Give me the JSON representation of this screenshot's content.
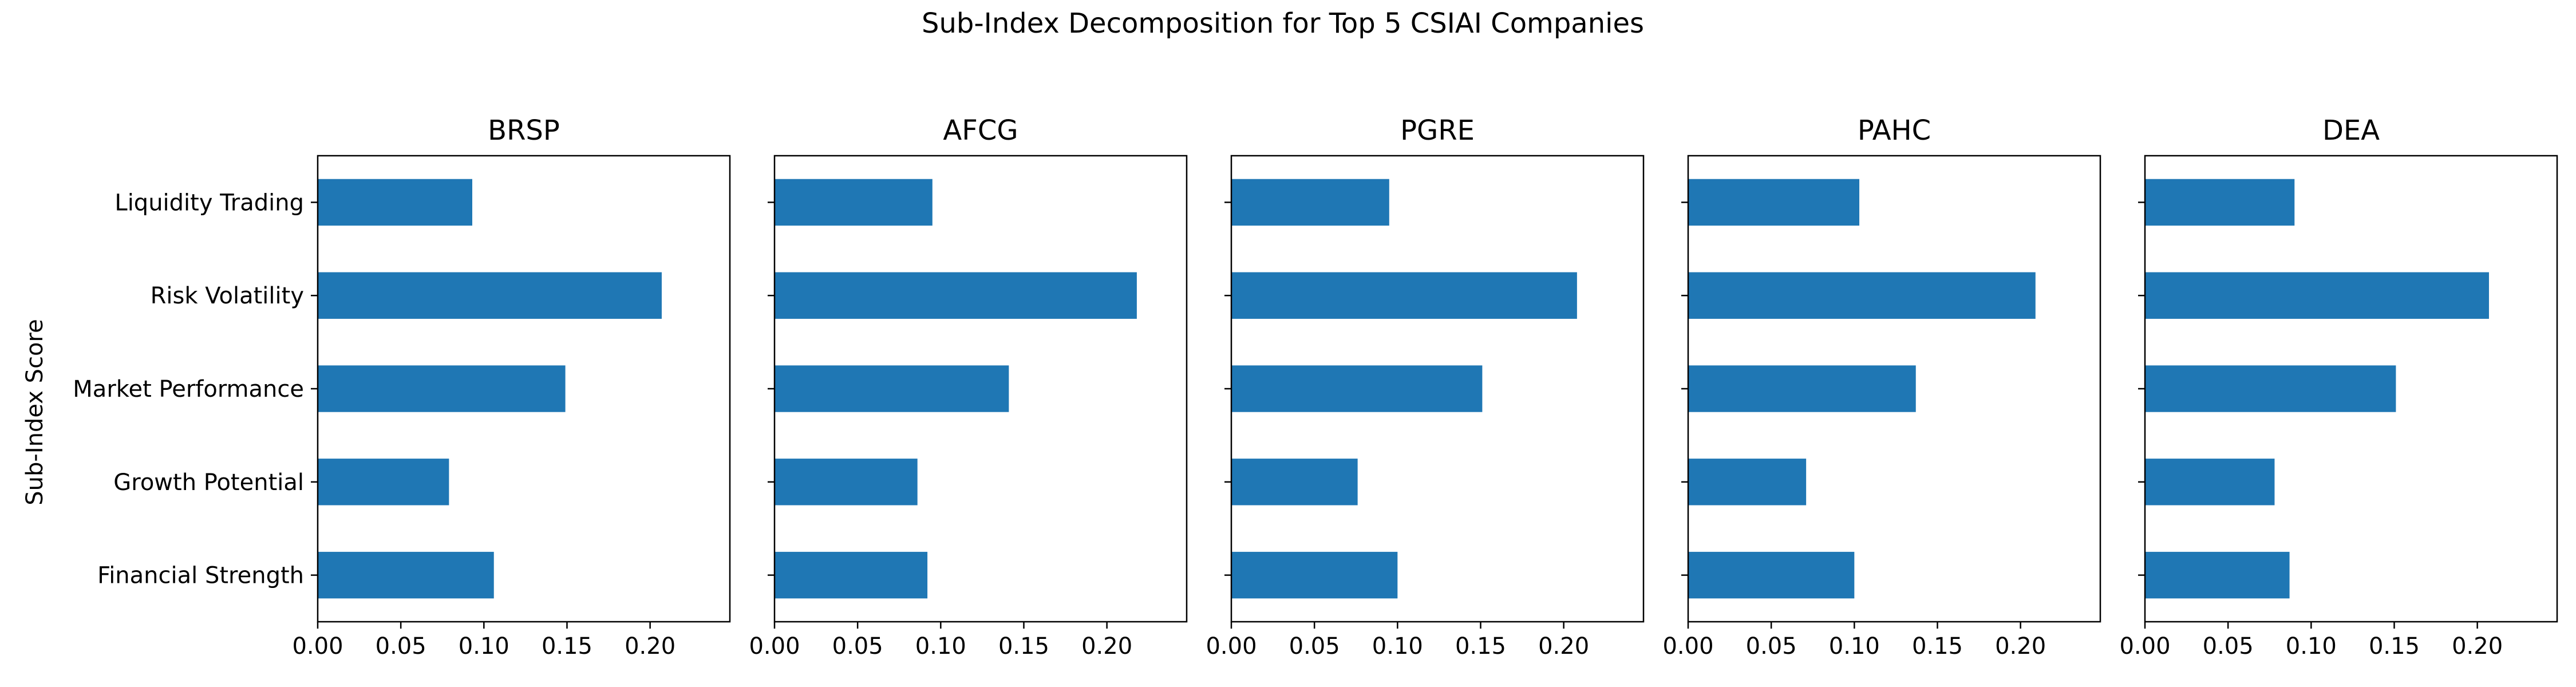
{
  "figure": {
    "title": "Sub-Index Decomposition for Top 5 CSIAI Companies",
    "ylabel": "Sub-Index Score"
  },
  "chart_data": [
    {
      "type": "bar",
      "orientation": "horizontal",
      "title": "BRSP",
      "categories": [
        "Financial Strength",
        "Growth Potential",
        "Market Performance",
        "Risk Volatility",
        "Liquidity Trading"
      ],
      "values": [
        0.106,
        0.079,
        0.149,
        0.207,
        0.093
      ],
      "xlim": [
        0,
        0.248
      ],
      "xticks": [
        "0.00",
        "0.05",
        "0.10",
        "0.15",
        "0.20"
      ],
      "color": "#1f77b4"
    },
    {
      "type": "bar",
      "orientation": "horizontal",
      "title": "AFCG",
      "categories": [
        "Financial Strength",
        "Growth Potential",
        "Market Performance",
        "Risk Volatility",
        "Liquidity Trading"
      ],
      "values": [
        0.092,
        0.086,
        0.141,
        0.218,
        0.095
      ],
      "xlim": [
        0,
        0.248
      ],
      "xticks": [
        "0.00",
        "0.05",
        "0.10",
        "0.15",
        "0.20"
      ],
      "color": "#1f77b4"
    },
    {
      "type": "bar",
      "orientation": "horizontal",
      "title": "PGRE",
      "categories": [
        "Financial Strength",
        "Growth Potential",
        "Market Performance",
        "Risk Volatility",
        "Liquidity Trading"
      ],
      "values": [
        0.1,
        0.076,
        0.151,
        0.208,
        0.095
      ],
      "xlim": [
        0,
        0.248
      ],
      "xticks": [
        "0.00",
        "0.05",
        "0.10",
        "0.15",
        "0.20"
      ],
      "color": "#1f77b4"
    },
    {
      "type": "bar",
      "orientation": "horizontal",
      "title": "PAHC",
      "categories": [
        "Financial Strength",
        "Growth Potential",
        "Market Performance",
        "Risk Volatility",
        "Liquidity Trading"
      ],
      "values": [
        0.1,
        0.071,
        0.137,
        0.209,
        0.103
      ],
      "xlim": [
        0,
        0.248
      ],
      "xticks": [
        "0.00",
        "0.05",
        "0.10",
        "0.15",
        "0.20"
      ],
      "color": "#1f77b4"
    },
    {
      "type": "bar",
      "orientation": "horizontal",
      "title": "DEA",
      "categories": [
        "Financial Strength",
        "Growth Potential",
        "Market Performance",
        "Risk Volatility",
        "Liquidity Trading"
      ],
      "values": [
        0.087,
        0.078,
        0.151,
        0.207,
        0.09
      ],
      "xlim": [
        0,
        0.248
      ],
      "xticks": [
        "0.00",
        "0.05",
        "0.10",
        "0.15",
        "0.20"
      ],
      "color": "#1f77b4"
    }
  ]
}
